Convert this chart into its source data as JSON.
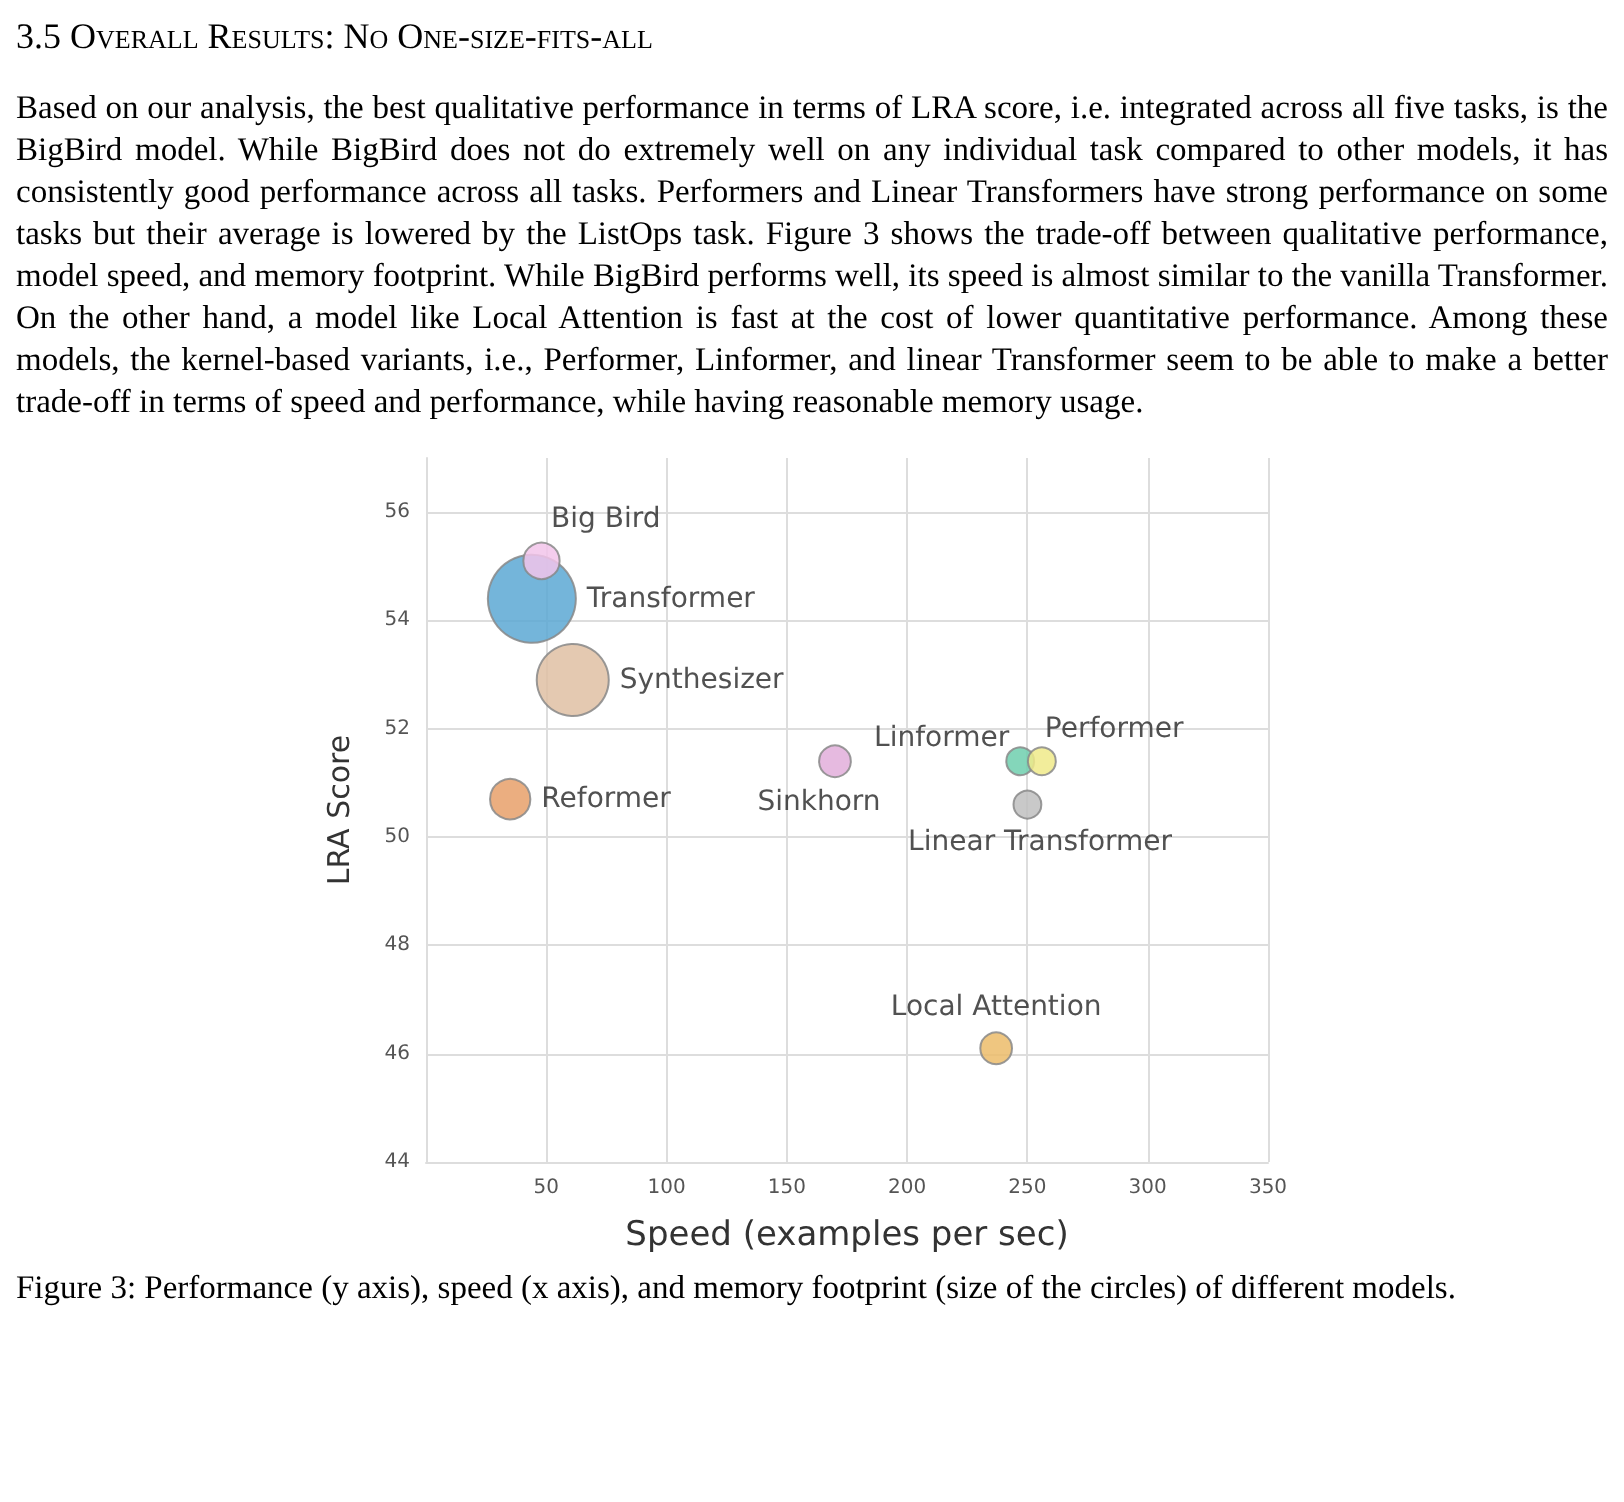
{
  "chart_data": {
    "type": "bubble",
    "title": "3.5 Overall Results: No One-size-fits-all",
    "subtitle": "Based on our analysis, the best qualitative performance in terms of LRA score, i.e. integrated across all five tasks, is the BigBird model. While BigBird does not do extremely well on any individual task compared to other models, it has consistently good performance across all tasks. Performers and Linear Transformers have strong performance on some tasks but their average is lowered by the ListOps task. Figure 3 shows the trade-off between qualitative performance, model speed, and memory footprint. While BigBird performs well, its speed is almost similar to the vanilla Transformer. On the other hand, a model like Local Attention is fast at the cost of lower quantitative performance. Among these models, the kernel-based variants, i.e., Performer, Linformer, and linear Transformer seem to be able to make a better trade-off in terms of speed and performance, while having reasonable memory usage.",
    "annotations": [
      "Figure 3: Performance (y axis), speed (x axis), and memory footprint (size of the circles) of different models."
    ],
    "xlabel": "Speed (examples per sec)",
    "ylabel": "LRA Score",
    "xlim": [
      0,
      350
    ],
    "xticks": [
      50,
      100,
      150,
      200,
      250,
      300,
      350
    ],
    "ylim": [
      44,
      57
    ],
    "yticks": [
      44,
      46,
      48,
      50,
      52,
      54,
      56
    ],
    "grid": true,
    "marker": "circle",
    "series": [
      {
        "name": "Transformer",
        "color": "#5ca8d4",
        "x": [
          44
        ],
        "values": [
          54.4
        ],
        "sizes": [
          1
        ]
      },
      {
        "name": "Big Bird",
        "color": "#f2c4ea",
        "x": [
          48
        ],
        "values": [
          55.1
        ],
        "sizes": [
          0.17
        ]
      },
      {
        "name": "Synthesizer",
        "color": "#dfc0a3",
        "x": [
          61
        ],
        "values": [
          52.9
        ],
        "sizes": [
          0.67
        ]
      },
      {
        "name": "Reformer",
        "color": "#e8a06a",
        "x": [
          35
        ],
        "values": [
          50.7
        ],
        "sizes": [
          0.21
        ]
      },
      {
        "name": "Sinkhorn",
        "color": "#e2aedb",
        "x": [
          170
        ],
        "values": [
          51.4
        ],
        "sizes": [
          0.13
        ]
      },
      {
        "name": "Linformer",
        "color": "#6fcfae",
        "x": [
          247
        ],
        "values": [
          51.4
        ],
        "sizes": [
          0.1
        ]
      },
      {
        "name": "Performer",
        "color": "#f0ea8a",
        "x": [
          256
        ],
        "values": [
          51.4
        ],
        "sizes": [
          0.1
        ]
      },
      {
        "name": "Linear Transformer",
        "color": "#c0c0c0",
        "x": [
          250
        ],
        "values": [
          50.6
        ],
        "sizes": [
          0.1
        ]
      },
      {
        "name": "Local Attention",
        "color": "#ecbc6a",
        "x": [
          237
        ],
        "values": [
          46.1
        ],
        "sizes": [
          0.13
        ]
      }
    ]
  }
}
